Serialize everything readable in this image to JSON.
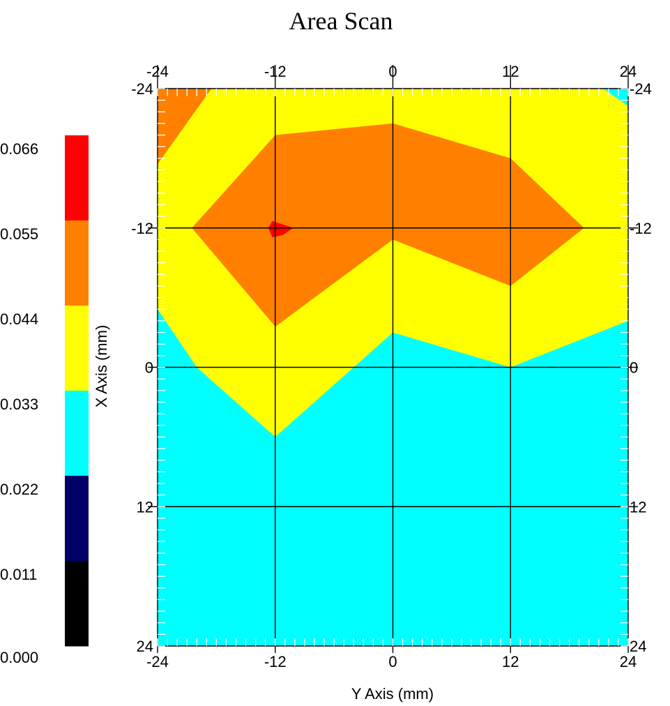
{
  "chart_data": {
    "type": "heatmap",
    "subtype": "filled-contour",
    "title": "Area Scan",
    "xlabel": "Y Axis (mm)",
    "ylabel": "X Axis (mm)",
    "xlim": [
      -24,
      24
    ],
    "ylim": [
      -24,
      24
    ],
    "y_direction": "downward",
    "x_ticks": [
      -24,
      -12,
      0,
      12,
      24
    ],
    "y_ticks": [
      -24,
      -12,
      0,
      12,
      24
    ],
    "x_tick_labels": [
      "-24",
      "-12",
      "0",
      "12",
      "24"
    ],
    "y_tick_labels": [
      "-24",
      "-12",
      "0",
      "12",
      "24"
    ],
    "grid": true,
    "legend_position": "left",
    "colorbar": {
      "labels": [
        "0.066",
        "0.055",
        "0.044",
        "0.033",
        "0.022",
        "0.011",
        "0.000"
      ],
      "bins": [
        {
          "min": 0.055,
          "max": 0.066,
          "color": "#ff0000"
        },
        {
          "min": 0.044,
          "max": 0.055,
          "color": "#ff8000"
        },
        {
          "min": 0.033,
          "max": 0.044,
          "color": "#ffff00"
        },
        {
          "min": 0.022,
          "max": 0.033,
          "color": "#00ffff"
        },
        {
          "min": 0.011,
          "max": 0.022,
          "color": "#000066"
        },
        {
          "min": 0.0,
          "max": 0.011,
          "color": "#000000"
        }
      ]
    },
    "background_level_color": "#00ffff",
    "regions": [
      {
        "level": "0.033-0.044",
        "color": "#ffff00",
        "points": [
          [
            -24,
            -24
          ],
          [
            24,
            -24
          ],
          [
            24,
            -16
          ],
          [
            24,
            -4
          ],
          [
            12,
            0
          ],
          [
            0,
            -3
          ],
          [
            -12,
            6
          ],
          [
            -20,
            0
          ],
          [
            -24,
            -5
          ]
        ]
      },
      {
        "level": "0.044-0.055",
        "color": "#ff8000",
        "points": [
          [
            -12,
            -20
          ],
          [
            0,
            -21
          ],
          [
            12,
            -18
          ],
          [
            19.5,
            -12
          ],
          [
            12,
            -7
          ],
          [
            0,
            -11
          ],
          [
            -12,
            -3.5
          ],
          [
            -20.5,
            -12
          ]
        ]
      },
      {
        "level": "0.044-0.055",
        "color": "#ff8000",
        "points": [
          [
            -24,
            -24
          ],
          [
            -18.5,
            -24
          ],
          [
            -24,
            -17.5
          ]
        ]
      },
      {
        "level": "0.055-0.066",
        "color": "#ff0000",
        "points": [
          [
            -12.3,
            -12.6
          ],
          [
            -11.2,
            -12.3
          ],
          [
            -10.2,
            -12
          ],
          [
            -11.2,
            -11.4
          ],
          [
            -12.3,
            -11.2
          ],
          [
            -12.7,
            -12
          ]
        ]
      },
      {
        "level": "0.022-0.033",
        "color": "#00ffff",
        "points": [
          [
            21.5,
            -24
          ],
          [
            24,
            -24
          ],
          [
            24,
            -22.5
          ]
        ]
      }
    ]
  }
}
